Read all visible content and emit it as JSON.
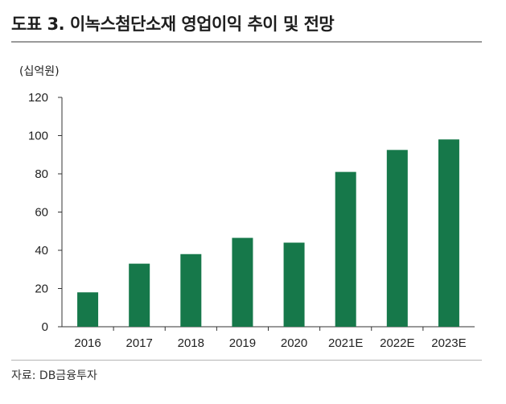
{
  "header": {
    "title": "도표 3. 이녹스첨단소재 영업이익 추이 및 전망"
  },
  "footer": {
    "source": "자료: DB금융투자"
  },
  "chart_data": {
    "type": "bar",
    "title": "도표 3. 이녹스첨단소재 영업이익 추이 및 전망",
    "unit_label": "(십억원)",
    "xlabel": "",
    "ylabel": "",
    "categories": [
      "2016",
      "2017",
      "2018",
      "2019",
      "2020",
      "2021E",
      "2022E",
      "2023E"
    ],
    "values": [
      18,
      33,
      38,
      46.5,
      44,
      81,
      92.5,
      98
    ],
    "ylim": [
      0,
      120
    ],
    "yticks": [
      0,
      20,
      40,
      60,
      80,
      100,
      120
    ],
    "grid": false,
    "legend": "none",
    "bar_color": "#16784a"
  }
}
